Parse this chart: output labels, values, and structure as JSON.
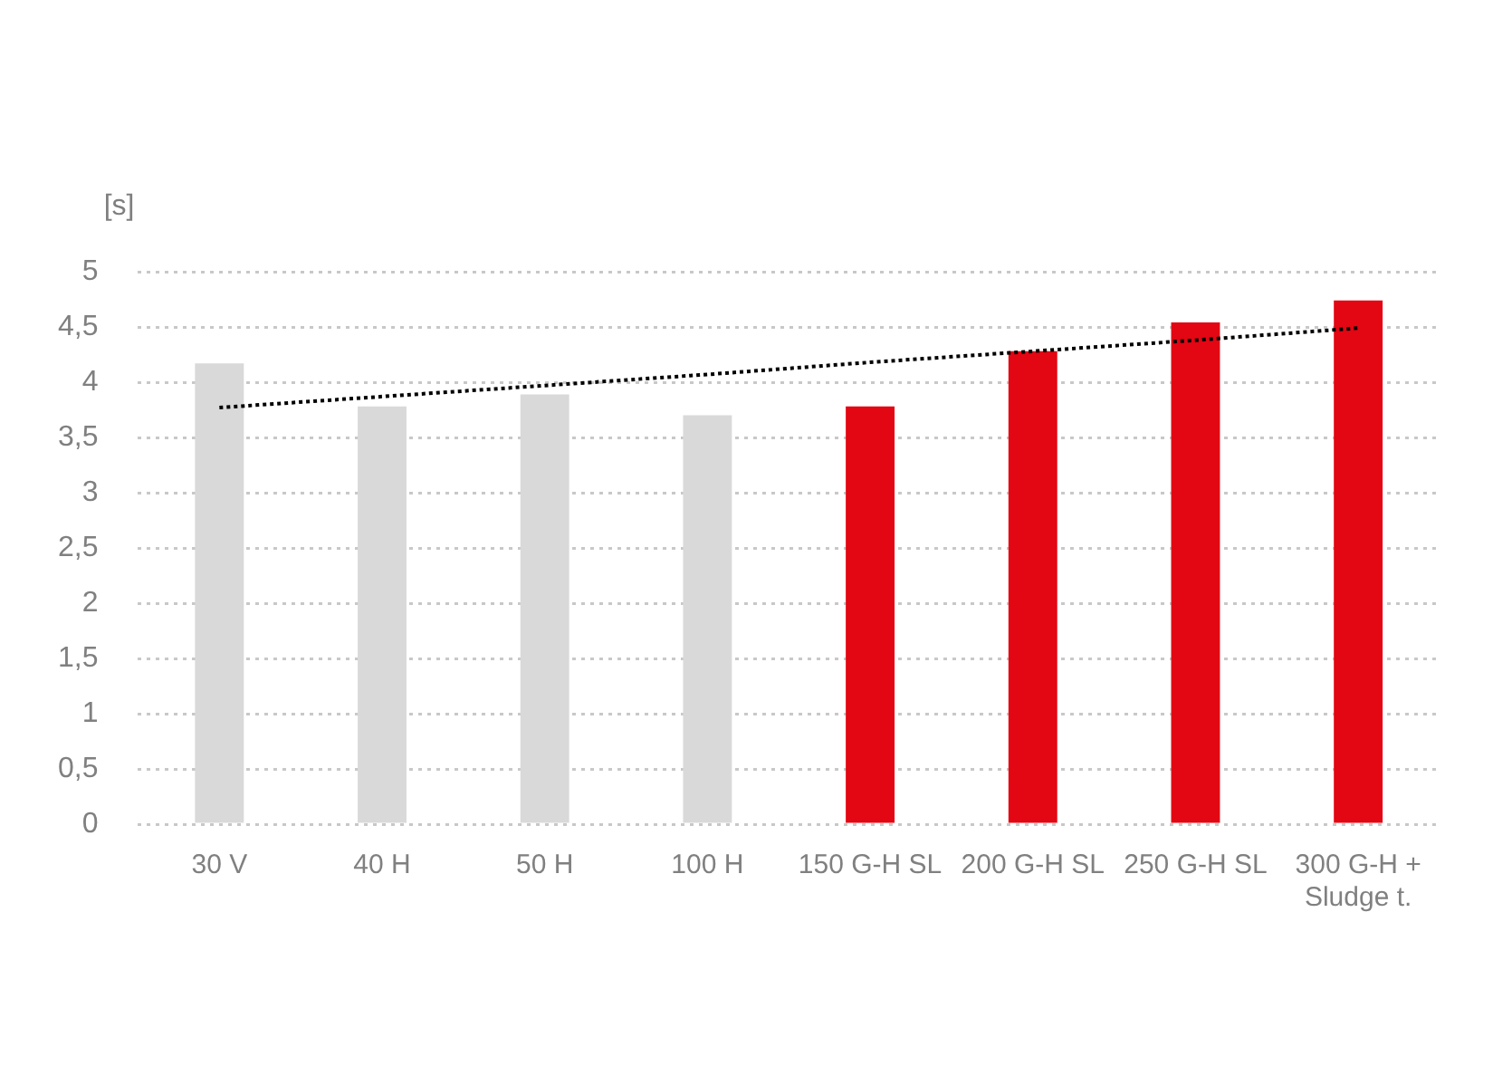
{
  "chart_data": {
    "type": "bar",
    "ylabel": "[s]",
    "categories": [
      "30 V",
      "40 H",
      "50 H",
      "100 H",
      "150 G-H SL",
      "200 G-H SL",
      "250 G-H SL",
      "300 G-H +\nSludge t."
    ],
    "series": [
      {
        "colors": [
          "#d9d9d9",
          "#d9d9d9",
          "#d9d9d9",
          "#d9d9d9",
          "#e30613",
          "#e30613",
          "#e30613",
          "#e30613"
        ],
        "values": [
          4.17,
          3.78,
          3.89,
          3.7,
          3.78,
          4.28,
          4.54,
          4.74
        ]
      },
      {
        "type": "line",
        "color": "#000000",
        "line_style": "dotted",
        "marker": "none",
        "values": [
          3.77,
          3.87,
          3.97,
          4.07,
          4.18,
          4.28,
          4.38,
          4.49
        ]
      }
    ],
    "ylim": [
      0,
      5
    ],
    "yticks": [
      {
        "value": 0,
        "label": "0"
      },
      {
        "value": 0.5,
        "label": "0,5"
      },
      {
        "value": 1,
        "label": "1"
      },
      {
        "value": 1.5,
        "label": "1,5"
      },
      {
        "value": 2,
        "label": "2"
      },
      {
        "value": 2.5,
        "label": "2,5"
      },
      {
        "value": 3,
        "label": "3"
      },
      {
        "value": 3.5,
        "label": "3,5"
      },
      {
        "value": 4,
        "label": "4"
      },
      {
        "value": 4.5,
        "label": "4,5"
      },
      {
        "value": 5,
        "label": "5"
      }
    ],
    "grid": "y",
    "legend": false
  }
}
